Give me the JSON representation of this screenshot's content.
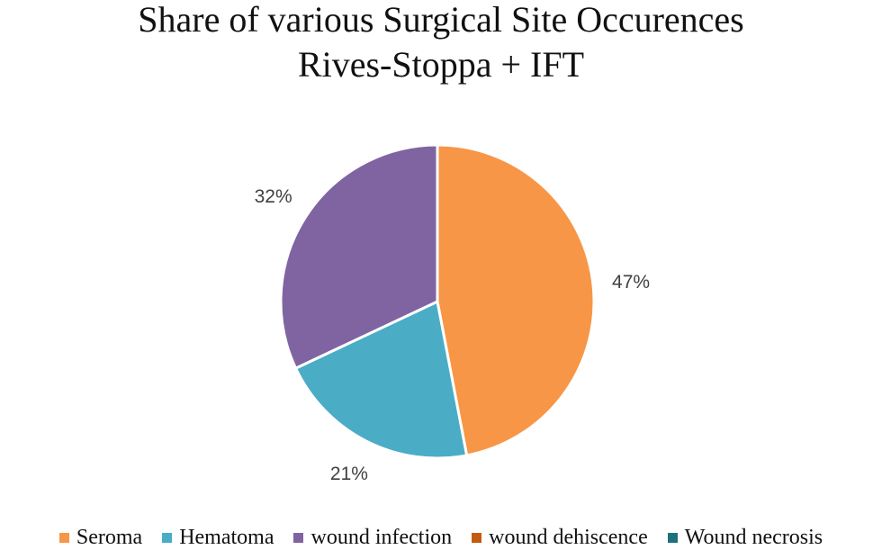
{
  "chart_data": {
    "type": "pie",
    "title": "Share of various Surgical Site Occurences",
    "subtitle": "Rives-Stoppa + IFT",
    "slices": [
      {
        "label": "Seroma",
        "value": 47,
        "display": "47%",
        "color": "#F79646"
      },
      {
        "label": "Hematoma",
        "value": 21,
        "display": "21%",
        "color": "#4BACC6"
      },
      {
        "label": "wound infection",
        "value": 32,
        "display": "32%",
        "color": "#8064A2"
      },
      {
        "label": "wound dehiscence",
        "value": 0,
        "display": "",
        "color": "#C0504D"
      },
      {
        "label": "Wound necrosis",
        "value": 0,
        "display": "",
        "color": "#31859C"
      }
    ],
    "legend": {
      "position": "bottom",
      "entries": [
        {
          "label": "Seroma",
          "color": "#F79646"
        },
        {
          "label": "Hematoma",
          "color": "#4BACC6"
        },
        {
          "label": "wound infection",
          "color": "#8064A2"
        },
        {
          "label": "wound dehiscence",
          "color": "#C55A11"
        },
        {
          "label": "Wound necrosis",
          "color": "#1F6F7F"
        }
      ]
    }
  }
}
